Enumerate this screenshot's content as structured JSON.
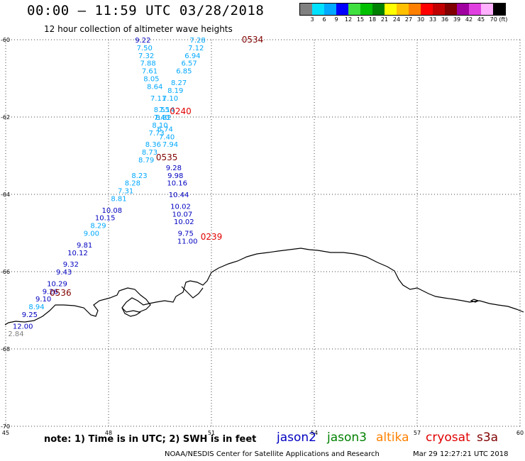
{
  "title": "00:00 – 11:59 UTC 03/28/2018",
  "subtitle": "12 hour collection of altimeter wave heights",
  "colorbar": {
    "colors": [
      "#808080",
      "#00e0ff",
      "#00a8ff",
      "#0000ff",
      "#40e040",
      "#00c000",
      "#008000",
      "#ffff00",
      "#ffc000",
      "#ff8000",
      "#ff0000",
      "#c00000",
      "#800000",
      "#a000a0",
      "#e040e0",
      "#ffb0ff",
      "#000000"
    ],
    "labels": [
      "3",
      "6",
      "9",
      "12",
      "15",
      "18",
      "21",
      "24",
      "27",
      "30",
      "33",
      "36",
      "39",
      "42",
      "45",
      "70 (ft)"
    ]
  },
  "axes": {
    "lon_ticks": [
      "45",
      "48",
      "51",
      "54",
      "57",
      "60"
    ],
    "lat_ticks": [
      "-60",
      "-62",
      "-64",
      "-66",
      "-68",
      "-70"
    ]
  },
  "tracks": [
    {
      "name": "0534",
      "color": "#800000",
      "points": [
        {
          "lon": 50.6,
          "lat": -60.0,
          "v": "7.28",
          "c": "#00a8ff"
        },
        {
          "lon": 50.55,
          "lat": -60.2,
          "v": "7.12",
          "c": "#00a8ff"
        },
        {
          "lon": 50.45,
          "lat": -60.4,
          "v": "6.94",
          "c": "#00a8ff"
        },
        {
          "lon": 50.35,
          "lat": -60.6,
          "v": "6.57",
          "c": "#00a8ff"
        },
        {
          "lon": 50.2,
          "lat": -60.8,
          "v": "6.85",
          "c": "#00a8ff"
        },
        {
          "lon": 50.05,
          "lat": -61.1,
          "v": "8.27",
          "c": "#00a8ff"
        },
        {
          "lon": 49.95,
          "lat": -61.3,
          "v": "8.19",
          "c": "#00a8ff"
        },
        {
          "lon": 49.8,
          "lat": -61.5,
          "v": "7.10",
          "c": "#00a8ff"
        },
        {
          "lon": 49.7,
          "lat": -61.8,
          "v": "7.14",
          "c": "#00a8ff"
        },
        {
          "lon": 49.55,
          "lat": -62.0,
          "v": "7.40",
          "c": "#00a8ff"
        },
        {
          "lon": 49.5,
          "lat": -62.2,
          "v": "8.10",
          "c": "#00a8ff"
        },
        {
          "lon": 49.4,
          "lat": -62.4,
          "v": "7.73",
          "c": "#00a8ff"
        },
        {
          "lon": 49.3,
          "lat": -62.7,
          "v": "8.36",
          "c": "#00a8ff"
        },
        {
          "lon": 49.2,
          "lat": -62.9,
          "v": "8.73",
          "c": "#00a8ff"
        },
        {
          "lon": 49.1,
          "lat": -63.1,
          "v": "8.79",
          "c": "#00a8ff"
        },
        {
          "lon": 48.9,
          "lat": -63.5,
          "v": "8.23",
          "c": "#00a8ff"
        },
        {
          "lon": 48.7,
          "lat": -63.7,
          "v": "8.28",
          "c": "#00a8ff"
        },
        {
          "lon": 48.5,
          "lat": -63.9,
          "v": "7.31",
          "c": "#00a8ff"
        },
        {
          "lon": 48.3,
          "lat": -64.1,
          "v": "8.81",
          "c": "#00a8ff"
        },
        {
          "lon": 48.1,
          "lat": -64.4,
          "v": "10.08",
          "c": "#0000c0"
        },
        {
          "lon": 47.9,
          "lat": -64.6,
          "v": "10.15",
          "c": "#0000c0"
        },
        {
          "lon": 47.7,
          "lat": -64.8,
          "v": "8.29",
          "c": "#00a8ff"
        },
        {
          "lon": 47.5,
          "lat": -65.0,
          "v": "9.00",
          "c": "#00a8ff"
        },
        {
          "lon": 47.3,
          "lat": -65.3,
          "v": "9.81",
          "c": "#0000c0"
        },
        {
          "lon": 47.1,
          "lat": -65.5,
          "v": "10.12",
          "c": "#0000c0"
        },
        {
          "lon": 46.9,
          "lat": -65.8,
          "v": "9.32",
          "c": "#0000c0"
        },
        {
          "lon": 46.7,
          "lat": -66.0,
          "v": "9.43",
          "c": "#0000c0"
        },
        {
          "lon": 46.5,
          "lat": -66.3,
          "v": "10.29",
          "c": "#0000c0"
        },
        {
          "lon": 46.3,
          "lat": -66.5,
          "v": "9.26",
          "c": "#0000c0"
        },
        {
          "lon": 46.1,
          "lat": -66.7,
          "v": "9.10",
          "c": "#0000c0"
        },
        {
          "lon": 45.9,
          "lat": -66.9,
          "v": "8.94",
          "c": "#00a8ff"
        },
        {
          "lon": 45.7,
          "lat": -67.1,
          "v": "9.25",
          "c": "#0000c0"
        },
        {
          "lon": 45.5,
          "lat": -67.4,
          "v": "12.00",
          "c": "#0000c0"
        },
        {
          "lon": 45.3,
          "lat": -67.6,
          "v": "2.84",
          "c": "#808080"
        }
      ]
    },
    {
      "name": "0535",
      "color": "#800000",
      "points": [
        {
          "lon": 49.0,
          "lat": -60.0,
          "v": "9.22",
          "c": "#0000c0"
        },
        {
          "lon": 49.05,
          "lat": -60.2,
          "v": "7.50",
          "c": "#00a8ff"
        },
        {
          "lon": 49.1,
          "lat": -60.4,
          "v": "7.32",
          "c": "#00a8ff"
        },
        {
          "lon": 49.15,
          "lat": -60.6,
          "v": "7.88",
          "c": "#00a8ff"
        },
        {
          "lon": 49.2,
          "lat": -60.8,
          "v": "7.61",
          "c": "#00a8ff"
        },
        {
          "lon": 49.25,
          "lat": -61.0,
          "v": "8.05",
          "c": "#00a8ff"
        },
        {
          "lon": 49.35,
          "lat": -61.2,
          "v": "8.64",
          "c": "#00a8ff"
        },
        {
          "lon": 49.45,
          "lat": -61.5,
          "v": "7.11",
          "c": "#00a8ff"
        },
        {
          "lon": 49.55,
          "lat": -61.8,
          "v": "8.55",
          "c": "#00a8ff"
        },
        {
          "lon": 49.6,
          "lat": -62.0,
          "v": "8.82",
          "c": "#00a8ff"
        },
        {
          "lon": 49.65,
          "lat": -62.3,
          "v": "6.74",
          "c": "#00a8ff"
        },
        {
          "lon": 49.7,
          "lat": -62.5,
          "v": "7.40",
          "c": "#00a8ff"
        },
        {
          "lon": 49.8,
          "lat": -62.7,
          "v": "7.94",
          "c": "#00a8ff"
        },
        {
          "lon": 49.9,
          "lat": -63.3,
          "v": "9.28",
          "c": "#0000c0"
        },
        {
          "lon": 49.95,
          "lat": -63.5,
          "v": "9.98",
          "c": "#0000c0"
        },
        {
          "lon": 50.0,
          "lat": -63.7,
          "v": "10.16",
          "c": "#0000c0"
        },
        {
          "lon": 50.05,
          "lat": -64.0,
          "v": "10.44",
          "c": "#0000c0"
        },
        {
          "lon": 50.1,
          "lat": -64.3,
          "v": "10.02",
          "c": "#0000c0"
        },
        {
          "lon": 50.15,
          "lat": -64.5,
          "v": "10.07",
          "c": "#0000c0"
        },
        {
          "lon": 50.2,
          "lat": -64.7,
          "v": "10.02",
          "c": "#0000c0"
        },
        {
          "lon": 50.25,
          "lat": -65.0,
          "v": "9.75",
          "c": "#0000c0"
        },
        {
          "lon": 50.3,
          "lat": -65.2,
          "v": "11.00",
          "c": "#0000c0"
        }
      ]
    }
  ],
  "time_labels": [
    {
      "text": "0534",
      "lon": 52.2,
      "lat": -60.0,
      "color": "#800000"
    },
    {
      "text": "0240",
      "lon": 50.1,
      "lat": -61.85,
      "color": "#e00000"
    },
    {
      "text": "0535",
      "lon": 49.7,
      "lat": -63.05,
      "color": "#800000"
    },
    {
      "text": "0239",
      "lon": 51.0,
      "lat": -65.1,
      "color": "#e00000"
    },
    {
      "text": "0536",
      "lon": 46.6,
      "lat": -66.55,
      "color": "#800000"
    }
  ],
  "note": "note:  1) Time is in UTC;  2) SWH is in feet",
  "legend": [
    {
      "name": "jason2",
      "color": "#0000c0"
    },
    {
      "name": "jason3",
      "color": "#008000"
    },
    {
      "name": "altika",
      "color": "#ff8000"
    },
    {
      "name": "cryosat",
      "color": "#e00000"
    },
    {
      "name": "s3a",
      "color": "#800000"
    }
  ],
  "credit": "NOAA/NESDIS Center for Satellite Applications and Research",
  "timestamp": "Mar 29 12:27:21 UTC 2018"
}
